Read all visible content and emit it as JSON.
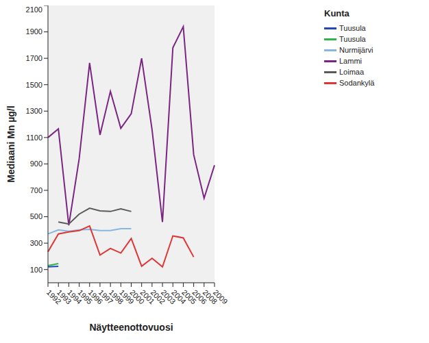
{
  "chart_data": {
    "type": "line",
    "x_label": "Näytteenottovuosi",
    "y_label": "Mediaani Mn µg/l",
    "legend_title": "Kunta",
    "legend": "right",
    "grid": false,
    "marker": "none",
    "categories": [
      "1992",
      "1993",
      "1994",
      "1995",
      "1996",
      "1997",
      "1998",
      "1999",
      "2000",
      "2001",
      "2002",
      "2003",
      "2004",
      "2005",
      "2006",
      "2008",
      "2009"
    ],
    "ylim": [
      0,
      2100
    ],
    "yticks": [
      100,
      300,
      500,
      700,
      900,
      1100,
      1300,
      1500,
      1700,
      1900,
      2100
    ],
    "series": [
      {
        "name": "Tuusula",
        "color": "#2347b8",
        "values": [
          120,
          125,
          null,
          null,
          null,
          null,
          null,
          null,
          null,
          null,
          null,
          null,
          null,
          null,
          null,
          null,
          null
        ]
      },
      {
        "name": "Tuusula",
        "color": "#2fb34a",
        "values": [
          130,
          145,
          null,
          null,
          null,
          null,
          null,
          null,
          null,
          null,
          null,
          null,
          null,
          null,
          null,
          null,
          null
        ]
      },
      {
        "name": "Nurmijärvi",
        "color": "#87b6e0",
        "values": [
          370,
          400,
          390,
          400,
          405,
          395,
          395,
          410,
          410,
          null,
          null,
          null,
          null,
          null,
          null,
          null,
          null
        ]
      },
      {
        "name": "Lammi",
        "color": "#7a2582",
        "values": [
          1100,
          1165,
          435,
          940,
          1665,
          1120,
          1450,
          1170,
          1280,
          1700,
          1160,
          460,
          1780,
          1940,
          970,
          640,
          890
        ]
      },
      {
        "name": "Loimaa",
        "color": "#5a5a5a",
        "values": [
          null,
          460,
          445,
          520,
          565,
          545,
          540,
          560,
          540,
          null,
          null,
          null,
          null,
          null,
          null,
          null,
          null
        ]
      },
      {
        "name": "Sodankylä",
        "color": "#e03535",
        "values": [
          235,
          370,
          385,
          395,
          430,
          210,
          260,
          225,
          335,
          125,
          185,
          120,
          355,
          340,
          195,
          null,
          null
        ]
      }
    ]
  }
}
